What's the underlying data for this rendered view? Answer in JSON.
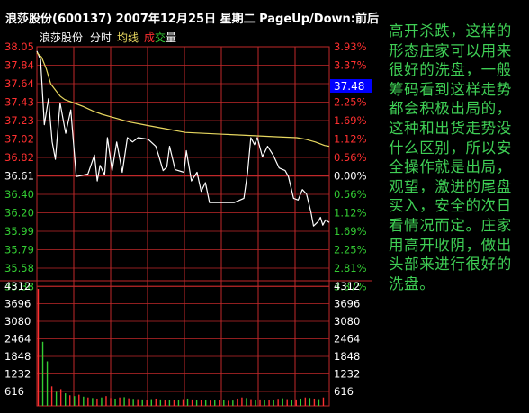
{
  "header": {
    "title": "浪莎股份(600137) 2007年12月25日 星期二 PageUp/Down:前后"
  },
  "legend": {
    "stock_name": "浪莎股份",
    "mode": "分时",
    "avg_label": "均线",
    "vol_label_1": "成",
    "vol_label_2": "交",
    "vol_label_3": "量"
  },
  "commentary": "高开杀跌，这样的形态庄家可以用来很好的洗盘，一般筹码看到这样走势都会积极出局的，这种和出货走势没什么区别，所以安全操作就是出局，观望，激进的尾盘买入，安全的次日看情况而定。庄家用高开收阴，做出头部来进行很好的洗盘。",
  "colors": {
    "background": "#000000",
    "grid": "#c0282a",
    "price_line": "#ffffff",
    "avg_line": "#e8d860",
    "up_text": "#ff3030",
    "down_text": "#33cc33",
    "neutral_text": "#ffffff",
    "commentary_text": "#3fcf55",
    "current_price_box": "#0000ff"
  },
  "chart_data": {
    "type": "line",
    "title": "浪莎股份(600137) 2007年12月25日 星期二",
    "prev_close": 36.61,
    "current_price_label": "37.48",
    "ylim": [
      35.28,
      38.05
    ],
    "price_ticks": [
      38.05,
      37.84,
      37.64,
      37.43,
      37.23,
      37.02,
      36.82,
      36.61,
      36.4,
      36.2,
      35.99,
      35.79,
      35.58,
      35.38
    ],
    "pct_ticks": [
      "3.93%",
      "3.37%",
      "2.81%",
      "2.25%",
      "1.69%",
      "1.12%",
      "0.56%",
      "0.00%",
      "0.56%",
      "1.12%",
      "1.69%",
      "2.25%",
      "2.81%",
      "3.37%"
    ],
    "volume_ticks": [
      4312,
      3696,
      3080,
      2464,
      1848,
      1232,
      616
    ],
    "volume_max": 4620,
    "series": [
      {
        "name": "价格",
        "points": [
          [
            0,
            38.0
          ],
          [
            0.8,
            37.9
          ],
          [
            1.6,
            37.15
          ],
          [
            2.5,
            37.45
          ],
          [
            3.3,
            36.95
          ],
          [
            4,
            36.75
          ],
          [
            5,
            37.4
          ],
          [
            6.2,
            37.05
          ],
          [
            7.3,
            37.32
          ],
          [
            8.5,
            36.55
          ],
          [
            11,
            36.58
          ],
          [
            12.4,
            36.8
          ],
          [
            13,
            36.5
          ],
          [
            13.6,
            36.68
          ],
          [
            14.6,
            36.57
          ],
          [
            15.2,
            37.0
          ],
          [
            16.2,
            36.62
          ],
          [
            17.2,
            36.95
          ],
          [
            18.4,
            36.6
          ],
          [
            19.5,
            37.0
          ],
          [
            20.6,
            36.95
          ],
          [
            21.8,
            37.0
          ],
          [
            24,
            36.98
          ],
          [
            25.6,
            36.9
          ],
          [
            26.2,
            36.8
          ],
          [
            27.2,
            36.62
          ],
          [
            28,
            36.66
          ],
          [
            28.6,
            36.9
          ],
          [
            29.8,
            36.63
          ],
          [
            31.7,
            36.6
          ],
          [
            32.2,
            36.85
          ],
          [
            33.3,
            36.5
          ],
          [
            34.5,
            36.6
          ],
          [
            35.4,
            36.38
          ],
          [
            36.3,
            36.48
          ],
          [
            37.2,
            36.25
          ],
          [
            39.5,
            36.25
          ],
          [
            42.5,
            36.25
          ],
          [
            44.6,
            36.3
          ],
          [
            45.4,
            36.6
          ],
          [
            46.1,
            37.0
          ],
          [
            46.9,
            36.92
          ],
          [
            47.5,
            37.0
          ],
          [
            48.6,
            36.78
          ],
          [
            49.7,
            36.9
          ],
          [
            50.9,
            36.8
          ],
          [
            52.2,
            36.65
          ],
          [
            53.5,
            36.62
          ],
          [
            54.2,
            36.55
          ],
          [
            55.3,
            36.3
          ],
          [
            56.3,
            36.28
          ],
          [
            57.2,
            36.4
          ],
          [
            58.1,
            36.35
          ],
          [
            59,
            36.15
          ],
          [
            59.6,
            35.98
          ],
          [
            60.6,
            36.03
          ],
          [
            61.1,
            36.08
          ],
          [
            61.6,
            35.99
          ],
          [
            62.2,
            36.05
          ],
          [
            63,
            36.02
          ]
        ]
      },
      {
        "name": "均线",
        "points": [
          [
            0,
            37.98
          ],
          [
            1,
            37.93
          ],
          [
            2,
            37.8
          ],
          [
            3,
            37.62
          ],
          [
            4,
            37.55
          ],
          [
            5,
            37.48
          ],
          [
            6,
            37.44
          ],
          [
            8,
            37.4
          ],
          [
            10,
            37.36
          ],
          [
            12,
            37.31
          ],
          [
            14,
            37.27
          ],
          [
            16,
            37.24
          ],
          [
            18,
            37.21
          ],
          [
            20,
            37.18
          ],
          [
            22,
            37.16
          ],
          [
            24,
            37.14
          ],
          [
            26,
            37.12
          ],
          [
            28,
            37.1
          ],
          [
            30,
            37.08
          ],
          [
            32,
            37.06
          ],
          [
            36,
            37.05
          ],
          [
            40,
            37.04
          ],
          [
            44,
            37.03
          ],
          [
            48,
            37.02
          ],
          [
            52,
            37.01
          ],
          [
            56,
            37.0
          ],
          [
            58,
            36.98
          ],
          [
            60,
            36.95
          ],
          [
            62,
            36.91
          ],
          [
            63,
            36.9
          ]
        ]
      }
    ],
    "volume": [
      4200,
      2300,
      1600,
      700,
      500,
      600,
      450,
      380,
      350,
      400,
      330,
      300,
      280,
      260,
      300,
      350,
      280,
      260,
      300,
      310,
      270,
      250,
      240,
      230,
      220,
      240,
      260,
      230,
      220,
      210,
      200,
      220,
      240,
      260,
      230,
      220,
      210,
      200,
      190,
      210,
      220,
      200,
      180,
      190,
      260,
      300,
      280,
      240,
      220,
      230,
      210,
      200,
      220,
      250,
      270,
      240,
      220,
      230,
      260,
      300,
      280,
      260,
      240,
      300
    ],
    "volume_colors": [
      "up",
      "down",
      "down",
      "up",
      "down",
      "up",
      "down",
      "up",
      "down",
      "up",
      "down",
      "up",
      "down",
      "up",
      "down",
      "up",
      "up",
      "down",
      "up",
      "down",
      "up",
      "down",
      "up",
      "down",
      "up",
      "down",
      "up",
      "down",
      "up",
      "down",
      "up",
      "down",
      "up",
      "down",
      "up",
      "down",
      "up",
      "down",
      "up",
      "down",
      "up",
      "down",
      "up",
      "down",
      "up",
      "up",
      "down",
      "up",
      "down",
      "up",
      "down",
      "up",
      "down",
      "up",
      "down",
      "up",
      "down",
      "up",
      "down",
      "up",
      "down",
      "up",
      "down",
      "up"
    ]
  }
}
